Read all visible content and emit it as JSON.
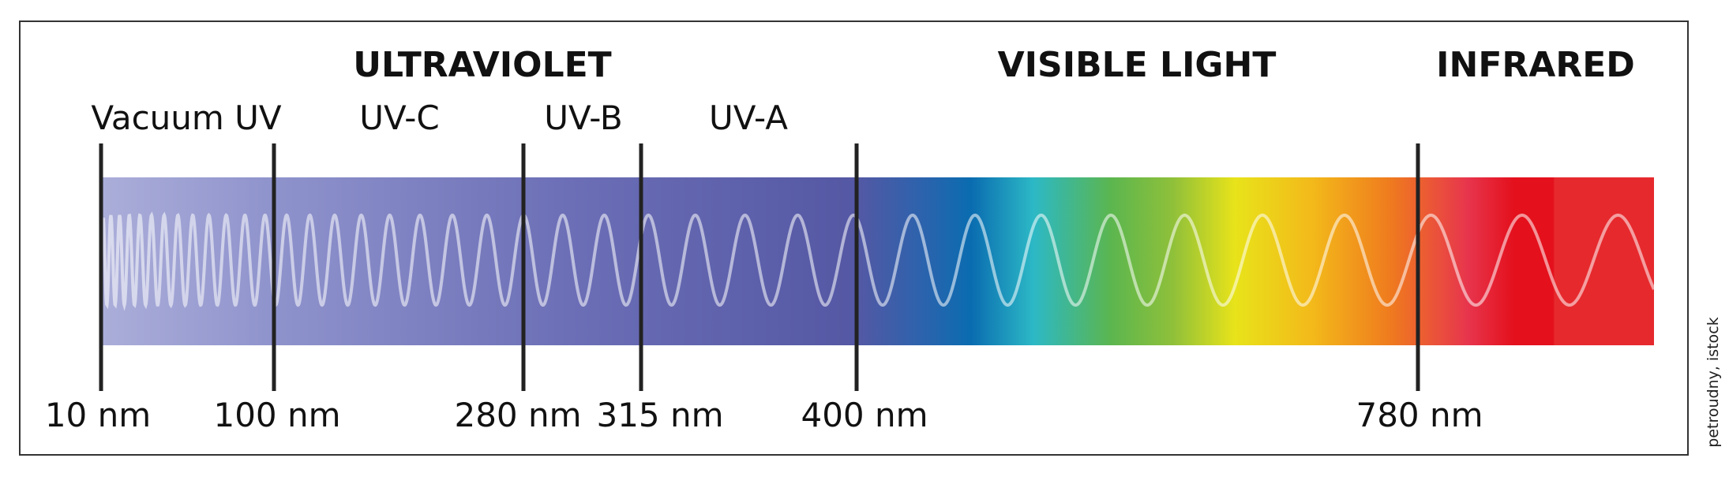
{
  "regions": [
    "ULTRAVIOLET",
    "VISIBLE LIGHT",
    "INFRARED"
  ],
  "bands": [
    "Vacuum UV",
    "UV-C",
    "UV-B",
    "UV-A"
  ],
  "boundaries": [
    "10 nm",
    "100 nm",
    "280 nm",
    "315 nm",
    "400 nm",
    "780 nm"
  ],
  "credit": "petroudny, istock"
}
